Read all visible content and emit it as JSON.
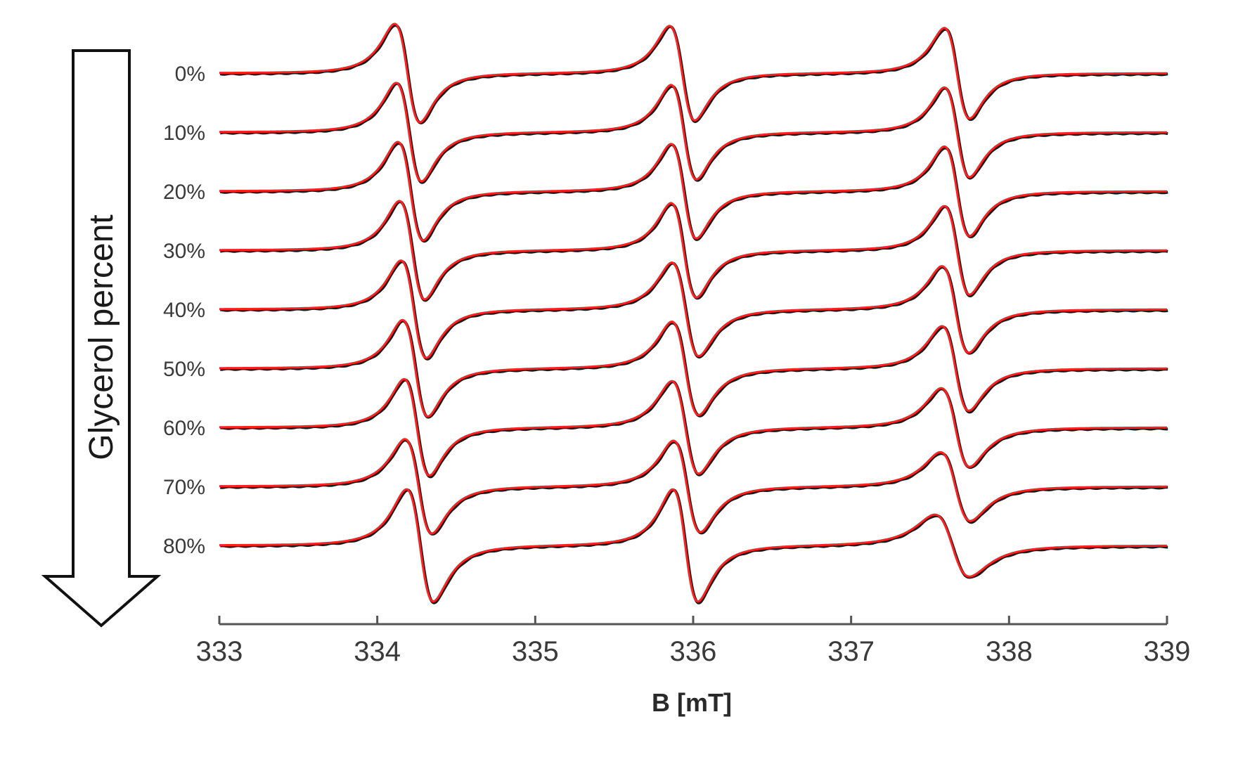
{
  "chart_data": {
    "type": "line",
    "title": "",
    "xlabel": "B [mT]",
    "ylabel": "",
    "xlim": [
      333,
      339
    ],
    "x_ticks": [
      "333",
      "334",
      "335",
      "336",
      "337",
      "338",
      "339"
    ],
    "grid": false,
    "arrow_label": "Glycerol percent",
    "colors": {
      "experimental": "#1a1a1a",
      "fit": "#ff2020",
      "axis": "#555555",
      "text": "#3a3a3a"
    },
    "traces": [
      {
        "label": "0%",
        "lines": [
          {
            "center": 334.19,
            "pp_width": 0.16,
            "pp_amp": 1.0
          },
          {
            "center": 335.93,
            "pp_width": 0.16,
            "pp_amp": 0.96
          },
          {
            "center": 337.67,
            "pp_width": 0.16,
            "pp_amp": 0.92
          }
        ]
      },
      {
        "label": "10%",
        "lines": [
          {
            "center": 334.2,
            "pp_width": 0.16,
            "pp_amp": 1.0
          },
          {
            "center": 335.94,
            "pp_width": 0.16,
            "pp_amp": 0.96
          },
          {
            "center": 337.67,
            "pp_width": 0.16,
            "pp_amp": 0.91
          }
        ]
      },
      {
        "label": "20%",
        "lines": [
          {
            "center": 334.21,
            "pp_width": 0.16,
            "pp_amp": 1.0
          },
          {
            "center": 335.94,
            "pp_width": 0.16,
            "pp_amp": 0.96
          },
          {
            "center": 337.67,
            "pp_width": 0.16,
            "pp_amp": 0.91
          }
        ]
      },
      {
        "label": "30%",
        "lines": [
          {
            "center": 334.22,
            "pp_width": 0.16,
            "pp_amp": 1.0
          },
          {
            "center": 335.94,
            "pp_width": 0.16,
            "pp_amp": 0.96
          },
          {
            "center": 337.67,
            "pp_width": 0.16,
            "pp_amp": 0.9
          }
        ]
      },
      {
        "label": "40%",
        "lines": [
          {
            "center": 334.23,
            "pp_width": 0.16,
            "pp_amp": 0.99
          },
          {
            "center": 335.95,
            "pp_width": 0.17,
            "pp_amp": 0.95
          },
          {
            "center": 337.66,
            "pp_width": 0.17,
            "pp_amp": 0.88
          }
        ]
      },
      {
        "label": "50%",
        "lines": [
          {
            "center": 334.24,
            "pp_width": 0.16,
            "pp_amp": 0.98
          },
          {
            "center": 335.95,
            "pp_width": 0.17,
            "pp_amp": 0.95
          },
          {
            "center": 337.66,
            "pp_width": 0.17,
            "pp_amp": 0.86
          }
        ]
      },
      {
        "label": "60%",
        "lines": [
          {
            "center": 334.25,
            "pp_width": 0.16,
            "pp_amp": 0.98
          },
          {
            "center": 335.95,
            "pp_width": 0.17,
            "pp_amp": 0.94
          },
          {
            "center": 337.66,
            "pp_width": 0.18,
            "pp_amp": 0.8
          }
        ]
      },
      {
        "label": "70%",
        "lines": [
          {
            "center": 334.26,
            "pp_width": 0.17,
            "pp_amp": 0.96
          },
          {
            "center": 335.96,
            "pp_width": 0.17,
            "pp_amp": 0.93
          },
          {
            "center": 337.66,
            "pp_width": 0.19,
            "pp_amp": 0.7
          }
        ]
      },
      {
        "label": "80%",
        "lines": [
          {
            "center": 334.27,
            "pp_width": 0.17,
            "pp_amp": 1.14
          },
          {
            "center": 335.95,
            "pp_width": 0.16,
            "pp_amp": 1.14
          },
          {
            "center": 337.64,
            "pp_width": 0.22,
            "pp_amp": 0.63
          }
        ]
      }
    ]
  }
}
